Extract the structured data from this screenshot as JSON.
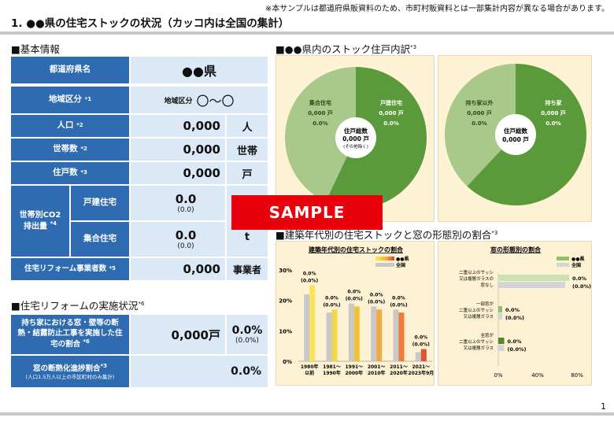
{
  "header": {
    "note": "※本サンプルは都道府県販資料のため、市町村販資料とは一部集計内容が異なる場合があります。",
    "title": "1. ●●県の住宅ストックの状況（カッコ内は全国の集計）",
    "page_number": "1"
  },
  "basic": {
    "section_title": "■基本情報",
    "pref_label": "都道府県名",
    "pref_value": "●●県",
    "region_label": "地域区分",
    "region_note": "*1",
    "region_value_prefix": "地域区分",
    "region_value": "〇〜〇",
    "pop_label": "人口",
    "pop_note": "*2",
    "pop_value": "0,000",
    "pop_unit": "人",
    "hh_label": "世帯数",
    "hh_note": "*2",
    "hh_value": "0,000",
    "hh_unit": "世帯",
    "dw_label": "住戸数",
    "dw_note": "*3",
    "dw_value": "0,000",
    "dw_unit": "戸",
    "co2_label": "世帯別CO2\n排出量",
    "co2_note": "*4",
    "co2_detached_label": "戸建住宅",
    "co2_detached_value": "0.0",
    "co2_detached_nat": "(0.0)",
    "co2_multi_label": "集合住宅",
    "co2_multi_value": "0.0",
    "co2_multi_nat": "(0.0)",
    "co2_unit": "t",
    "reform_label": "住宅リフォーム事業者数",
    "reform_note": "*5",
    "reform_value": "0,000",
    "reform_unit": "事業者"
  },
  "reform": {
    "section_title": "■住宅リフォームの実施状況",
    "section_note": "*6",
    "row1_label": "持ち家における窓・壁等の断熱・結露防止工事を実施した住宅の割合",
    "row1_note": "*6",
    "row1_value": "0,000戸",
    "row1_pct": "0.0%",
    "row1_pct_nat": "(0.0%)",
    "row2_label": "窓の断熱化進捗割合",
    "row2_note": "*3",
    "row2_sub": "(人口1.5万人以上の市区町村のみ集計)",
    "row2_pct": "0.0%"
  },
  "stock": {
    "section_title": "■●●県内のストック住戸内訳",
    "section_note": "*3",
    "pie1": {
      "center_line1": "住戸総数",
      "center_line2": "0,000 戸",
      "center_line3": "(その他除く)",
      "left_label": "集合住宅",
      "left_value": "0,000 戸",
      "left_pct": "0.0%",
      "right_label": "戸建住宅",
      "right_value": "0,000 戸",
      "right_pct": "0.0%",
      "color_left": "#a9c98a",
      "color_right": "#5b9a3a"
    },
    "pie2": {
      "center_line1": "住戸総数",
      "center_line2": "0,000 戸",
      "left_label": "持ち家以外",
      "left_value": "0,000 戸",
      "left_pct": "0.0%",
      "right_label": "持ち家",
      "right_value": "0,000 戸",
      "right_pct": "0.0%",
      "color_left": "#a9c98a",
      "color_right": "#5b9a3a"
    }
  },
  "windows": {
    "section_title": "■建築年代別の住宅ストックと窓の形態別の割合",
    "section_note": "*3"
  },
  "sample_label": "SAMPLE",
  "chart_data": [
    {
      "type": "bar",
      "title": "建築年代別の住宅ストックの割合",
      "legend": [
        "●●県",
        "全国"
      ],
      "categories": [
        "1980年以前",
        "1981〜1990年",
        "1991〜2000年",
        "2001〜2010年",
        "2011〜2020年",
        "2021〜2023年9月"
      ],
      "category_lines": [
        [
          "1980年",
          "以前"
        ],
        [
          "1981〜",
          "1990年"
        ],
        [
          "1991〜",
          "2000年"
        ],
        [
          "2001〜",
          "2010年"
        ],
        [
          "2011〜",
          "2020年"
        ],
        [
          "2021〜",
          "2023年9月"
        ]
      ],
      "series": [
        {
          "name": "全国",
          "values": [
            22,
            16,
            19,
            18,
            17,
            3
          ],
          "color": "#c8c8c8"
        },
        {
          "name": "●●県",
          "values": [
            25,
            17,
            18,
            17,
            16,
            4
          ],
          "colors": [
            "#f8e45c",
            "#f5d54a",
            "#f4c236",
            "#f3a942",
            "#ef7a3a",
            "#d9572a"
          ]
        }
      ],
      "data_labels": [
        "0.0%",
        "0.0%",
        "0.0%",
        "0.0%",
        "0.0%",
        "0.0%"
      ],
      "data_labels_nat": [
        "(0.0%)",
        "(0.0%)",
        "(0.0%)",
        "(0.0%)",
        "(0.0%)",
        "(0.0%)"
      ],
      "yticks": [
        "0%",
        "10%",
        "20%",
        "30%"
      ],
      "ylim": [
        0,
        30
      ]
    },
    {
      "type": "bar",
      "orientation": "horizontal",
      "title": "窓の形態別の割合",
      "legend": [
        "●●県",
        "全国"
      ],
      "categories": [
        "二重以上のサッシ又は複層ガラスの窓なし",
        "一部窓が二重以上のサッシ又は複層ガラス",
        "全窓が二重以上のサッシ又は複層ガラス"
      ],
      "category_lines": [
        [
          "二重以上のサッシ",
          "又は複層ガラスの",
          "窓なし"
        ],
        [
          "一部窓が",
          "二重以上のサッシ",
          "又は複層ガラス"
        ],
        [
          "全窓が",
          "二重以上のサッシ",
          "又は複層ガラス"
        ]
      ],
      "series": [
        {
          "name": "●●県",
          "values": [
            72,
            4,
            6
          ],
          "colors": [
            "#c9e2b3",
            "#8fc06a",
            "#4f8a2c"
          ]
        },
        {
          "name": "全国",
          "values": [
            68,
            4,
            6
          ],
          "color": "#d4d4d4"
        }
      ],
      "data_labels": [
        "0.0%",
        "0.0%",
        "0.0%"
      ],
      "data_labels_nat": [
        "(0.0%)",
        "(0.0%)",
        "(0.0%)"
      ],
      "xticks": [
        "0%",
        "40%",
        "80%"
      ],
      "xlim": [
        0,
        80
      ]
    }
  ]
}
